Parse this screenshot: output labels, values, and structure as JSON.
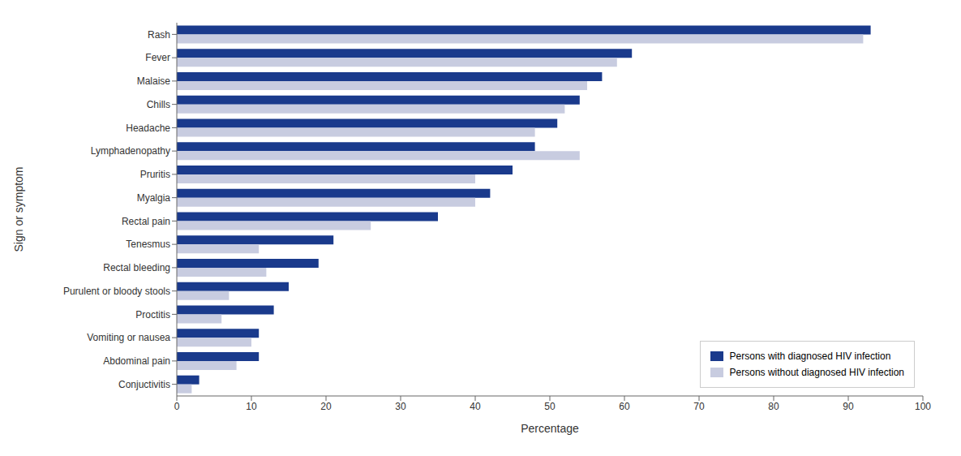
{
  "chart_data": {
    "type": "bar",
    "orientation": "horizontal",
    "categories": [
      "Rash",
      "Fever",
      "Malaise",
      "Chills",
      "Headache",
      "Lymphadenopathy",
      "Pruritis",
      "Myalgia",
      "Rectal pain",
      "Tenesmus",
      "Rectal bleeding",
      "Purulent or bloody stools",
      "Proctitis",
      "Vomiting or nausea",
      "Abdominal pain",
      "Conjuctivitis"
    ],
    "series": [
      {
        "name": "Persons with diagnosed HIV infection",
        "color": "#1a3a8c",
        "values": [
          93,
          61,
          57,
          54,
          51,
          48,
          45,
          42,
          35,
          21,
          19,
          15,
          13,
          11,
          11,
          3
        ]
      },
      {
        "name": "Persons without diagnosed HIV infection",
        "color": "#c8cce0",
        "values": [
          92,
          59,
          55,
          52,
          48,
          54,
          40,
          40,
          26,
          11,
          12,
          7,
          6,
          10,
          8,
          2
        ]
      }
    ],
    "xlabel": "Percentage",
    "ylabel": "Sign or symptom",
    "xlim": [
      0,
      100
    ],
    "xticks": [
      0,
      10,
      20,
      30,
      40,
      50,
      60,
      70,
      80,
      90,
      100
    ],
    "grid": false,
    "legend": "lower right"
  }
}
